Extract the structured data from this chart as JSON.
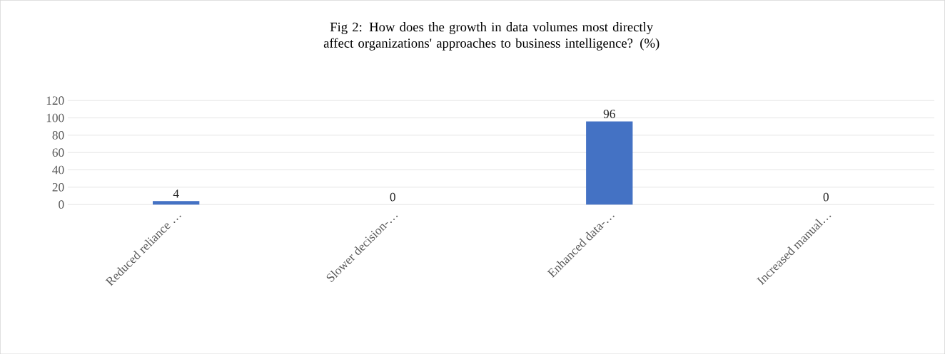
{
  "chart_data": {
    "type": "bar",
    "title": "Fig 2: How does the growth in data volumes most directly affect organizations' approaches to business intelligence? (%)",
    "categories": [
      "Reduced reliance …",
      "Slower decision-…",
      "Enhanced data-…",
      "Increased manual…"
    ],
    "values": [
      4,
      0,
      96,
      0
    ],
    "color": "#4472c4",
    "ylim": [
      0,
      120
    ],
    "yticks": [
      0,
      20,
      40,
      60,
      80,
      100,
      120
    ],
    "grid": "y",
    "data_labels": true
  }
}
